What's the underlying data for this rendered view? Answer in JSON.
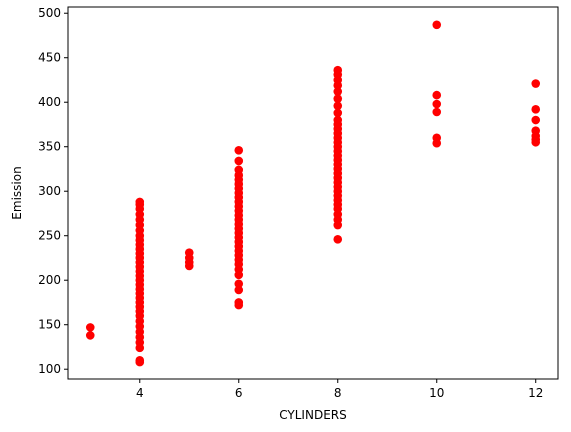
{
  "chart_data": {
    "type": "scatter",
    "title": "",
    "xlabel": "CYLINDERS",
    "ylabel": "Emission",
    "xlim": [
      2.55,
      12.45
    ],
    "ylim": [
      89,
      507
    ],
    "xticks": [
      4,
      6,
      8,
      10,
      12
    ],
    "yticks": [
      100,
      150,
      200,
      250,
      300,
      350,
      400,
      450,
      500
    ],
    "grid": false,
    "legend": "none",
    "marker_color": "#ff0000",
    "series": [
      {
        "points": [
          [
            3,
            138
          ],
          [
            3,
            147
          ],
          [
            4,
            108
          ],
          [
            4,
            110
          ],
          [
            4,
            124
          ],
          [
            4,
            130
          ],
          [
            4,
            136
          ],
          [
            4,
            142
          ],
          [
            4,
            148
          ],
          [
            4,
            154
          ],
          [
            4,
            160
          ],
          [
            4,
            165
          ],
          [
            4,
            170
          ],
          [
            4,
            175
          ],
          [
            4,
            180
          ],
          [
            4,
            185
          ],
          [
            4,
            190
          ],
          [
            4,
            195
          ],
          [
            4,
            200
          ],
          [
            4,
            205
          ],
          [
            4,
            210
          ],
          [
            4,
            215
          ],
          [
            4,
            220
          ],
          [
            4,
            225
          ],
          [
            4,
            230
          ],
          [
            4,
            235
          ],
          [
            4,
            240
          ],
          [
            4,
            245
          ],
          [
            4,
            250
          ],
          [
            4,
            256
          ],
          [
            4,
            262
          ],
          [
            4,
            268
          ],
          [
            4,
            274
          ],
          [
            4,
            280
          ],
          [
            4,
            285
          ],
          [
            4,
            288
          ],
          [
            5,
            216
          ],
          [
            5,
            220
          ],
          [
            5,
            225
          ],
          [
            5,
            231
          ],
          [
            6,
            172
          ],
          [
            6,
            175
          ],
          [
            6,
            189
          ],
          [
            6,
            196
          ],
          [
            6,
            206
          ],
          [
            6,
            212
          ],
          [
            6,
            218
          ],
          [
            6,
            223
          ],
          [
            6,
            228
          ],
          [
            6,
            233
          ],
          [
            6,
            238
          ],
          [
            6,
            243
          ],
          [
            6,
            248
          ],
          [
            6,
            253
          ],
          [
            6,
            258
          ],
          [
            6,
            263
          ],
          [
            6,
            268
          ],
          [
            6,
            273
          ],
          [
            6,
            278
          ],
          [
            6,
            283
          ],
          [
            6,
            288
          ],
          [
            6,
            293
          ],
          [
            6,
            298
          ],
          [
            6,
            303
          ],
          [
            6,
            308
          ],
          [
            6,
            313
          ],
          [
            6,
            318
          ],
          [
            6,
            324
          ],
          [
            6,
            334
          ],
          [
            6,
            346
          ],
          [
            8,
            246
          ],
          [
            8,
            262
          ],
          [
            8,
            268
          ],
          [
            8,
            274
          ],
          [
            8,
            280
          ],
          [
            8,
            285
          ],
          [
            8,
            290
          ],
          [
            8,
            295
          ],
          [
            8,
            300
          ],
          [
            8,
            305
          ],
          [
            8,
            310
          ],
          [
            8,
            315
          ],
          [
            8,
            320
          ],
          [
            8,
            325
          ],
          [
            8,
            330
          ],
          [
            8,
            335
          ],
          [
            8,
            340
          ],
          [
            8,
            345
          ],
          [
            8,
            350
          ],
          [
            8,
            355
          ],
          [
            8,
            360
          ],
          [
            8,
            365
          ],
          [
            8,
            370
          ],
          [
            8,
            375
          ],
          [
            8,
            380
          ],
          [
            8,
            388
          ],
          [
            8,
            396
          ],
          [
            8,
            404
          ],
          [
            8,
            412
          ],
          [
            8,
            419
          ],
          [
            8,
            425
          ],
          [
            8,
            431
          ],
          [
            8,
            436
          ],
          [
            10,
            354
          ],
          [
            10,
            360
          ],
          [
            10,
            389
          ],
          [
            10,
            398
          ],
          [
            10,
            408
          ],
          [
            10,
            487
          ],
          [
            12,
            355
          ],
          [
            12,
            358
          ],
          [
            12,
            362
          ],
          [
            12,
            368
          ],
          [
            12,
            380
          ],
          [
            12,
            392
          ],
          [
            12,
            421
          ]
        ]
      }
    ]
  }
}
